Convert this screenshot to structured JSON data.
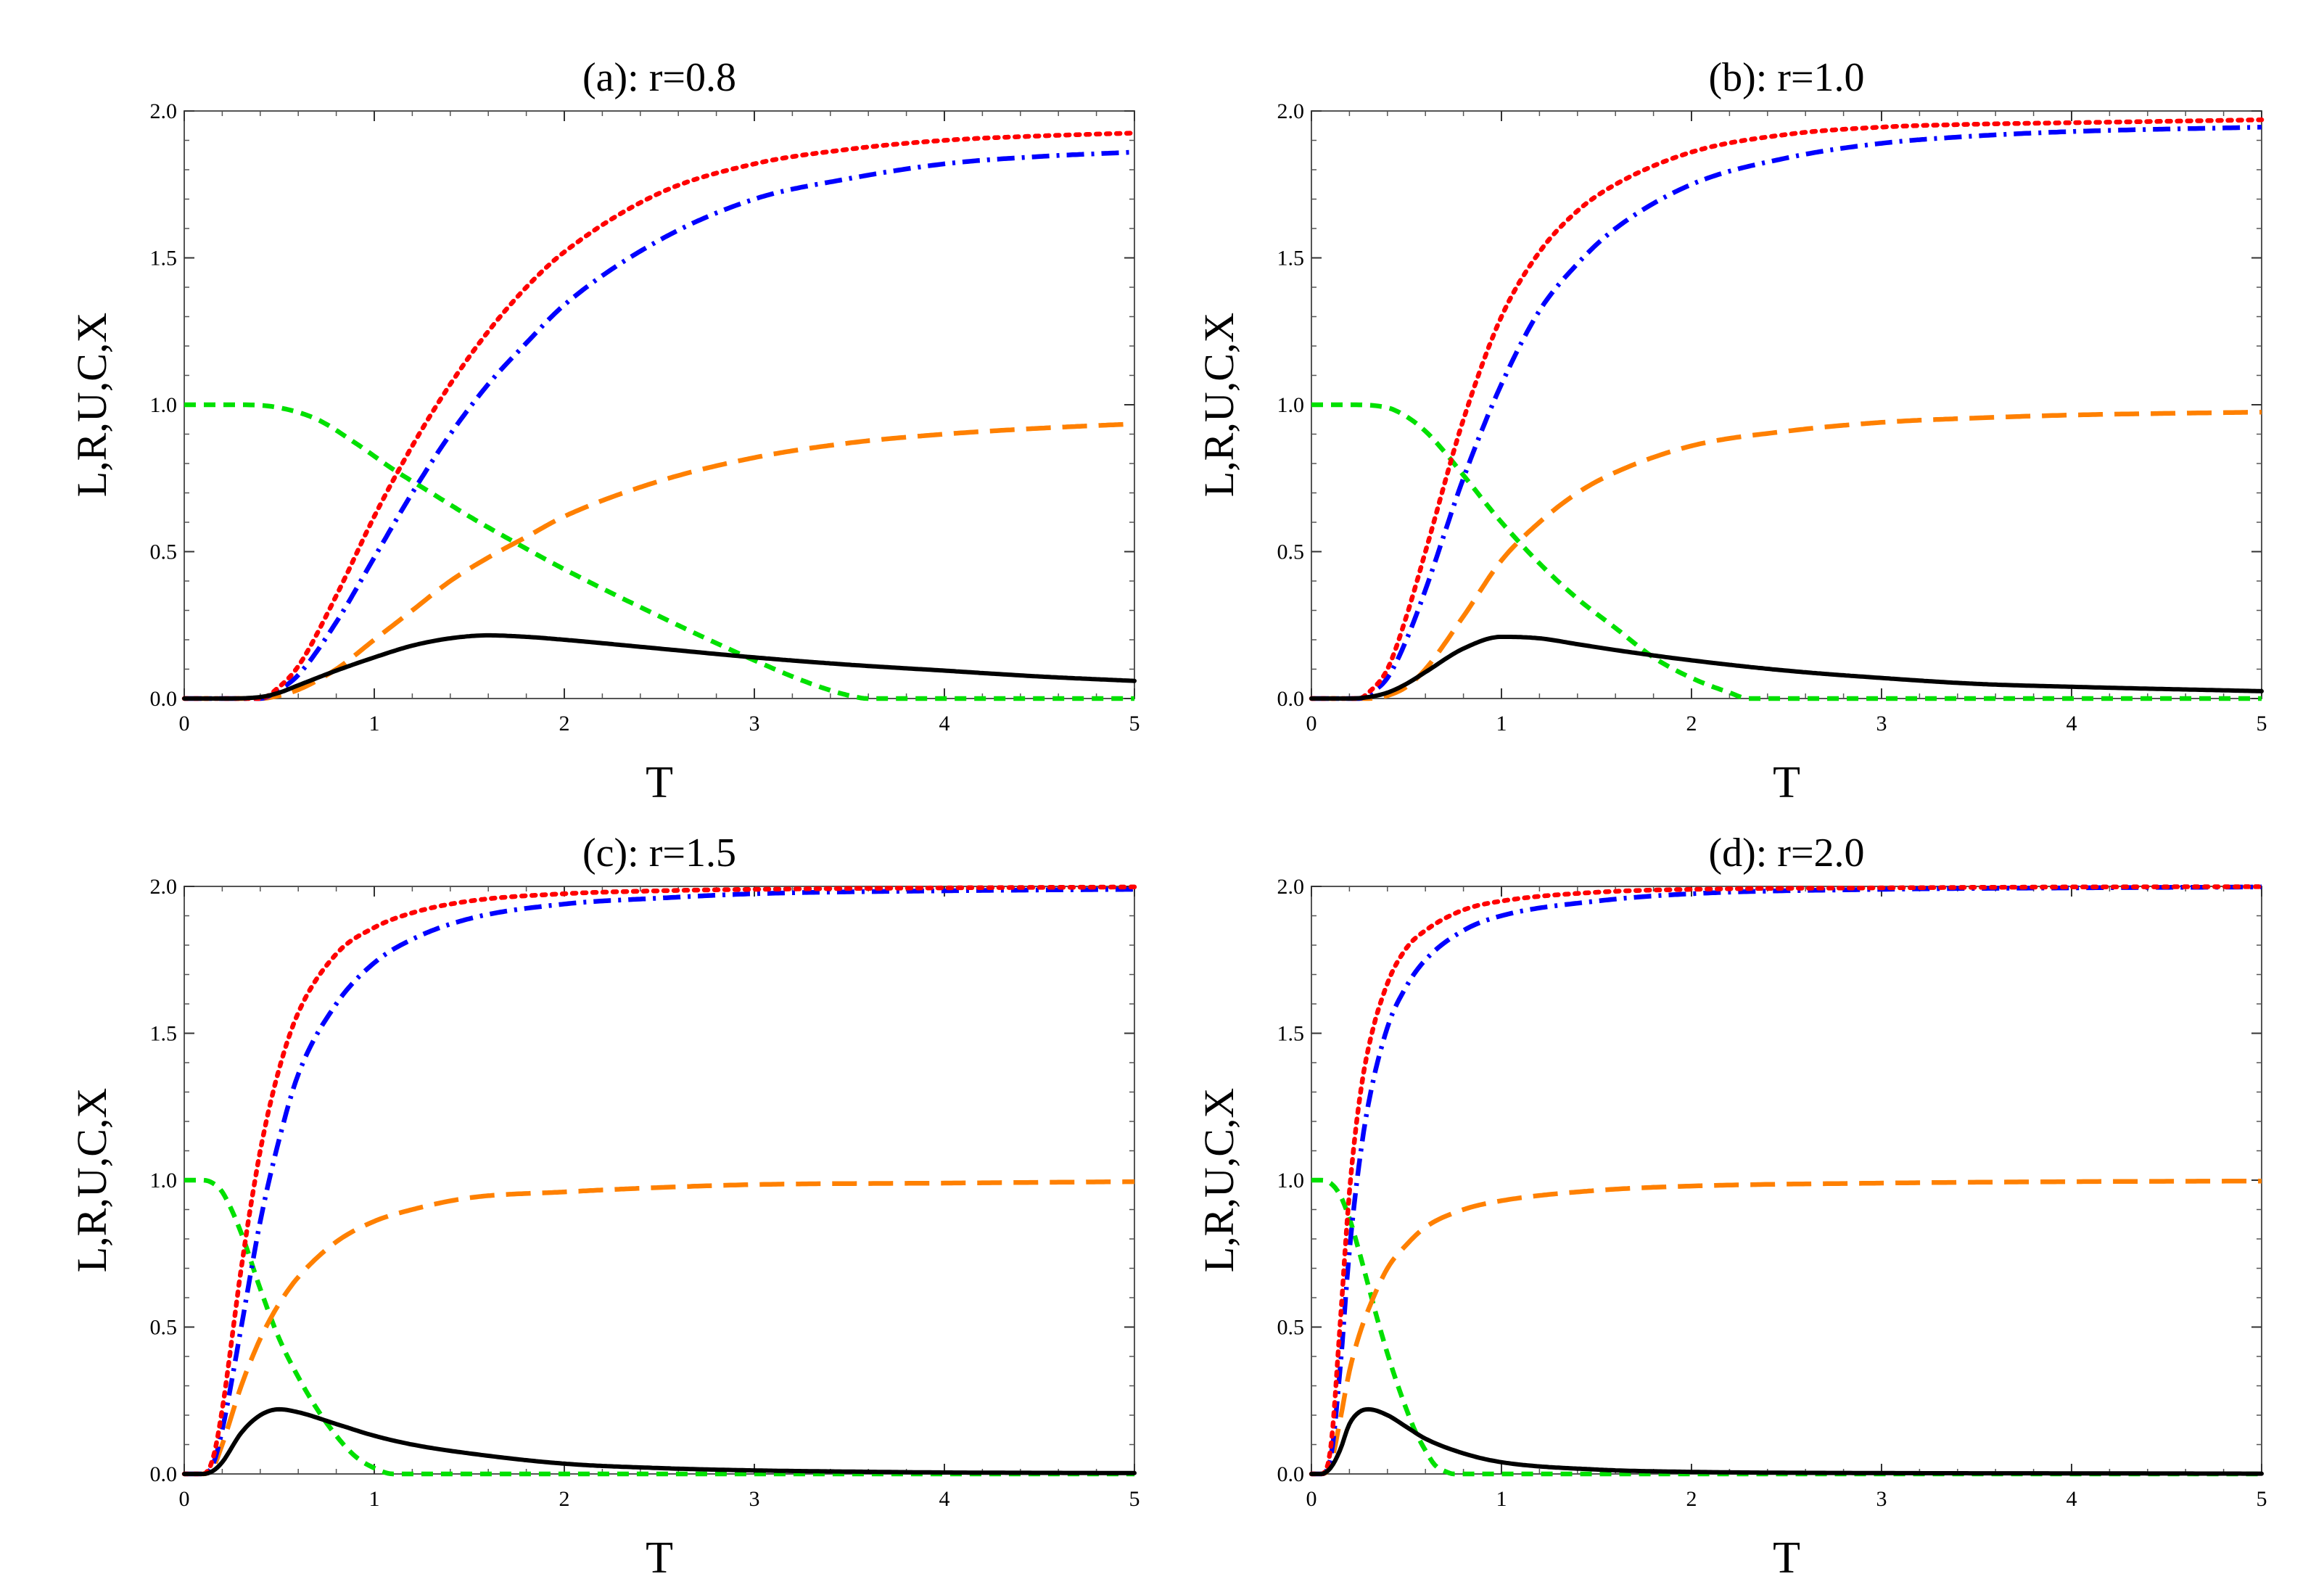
{
  "figure": {
    "colors": {
      "L": "#000000",
      "R": "#ff8000",
      "U": "#ff0000",
      "C": "#0000ff",
      "X": "#00e000"
    },
    "icons": {
      "L": "solid-line",
      "R": "long-dashed-line",
      "U": "dotted-line",
      "C": "dash-dotted-line",
      "X": "short-dashed-line"
    }
  },
  "chart_data": [
    {
      "type": "line",
      "title": "(a): r=0.8",
      "xlabel": "T",
      "ylabel": "L,R,U,C,X",
      "xlim": [
        0,
        5
      ],
      "ylim": [
        0,
        2
      ],
      "x_ticks": [
        "0",
        "1",
        "2",
        "3",
        "4",
        "5"
      ],
      "y_ticks": [
        "0.0",
        "0.5",
        "1.0",
        "1.5",
        "2.0"
      ],
      "series": [
        {
          "name": "L",
          "x": [
            0,
            0.2,
            0.4,
            0.5,
            0.6,
            0.8,
            1.0,
            1.2,
            1.4,
            1.6,
            1.8,
            2.0,
            2.5,
            3.0,
            3.5,
            4.0,
            4.5,
            5.0
          ],
          "values": [
            0,
            0,
            0.005,
            0.02,
            0.045,
            0.095,
            0.14,
            0.18,
            0.205,
            0.215,
            0.21,
            0.2,
            0.17,
            0.14,
            0.115,
            0.095,
            0.075,
            0.06
          ]
        },
        {
          "name": "R",
          "x": [
            0,
            0.4,
            0.5,
            0.6,
            0.8,
            1.0,
            1.2,
            1.4,
            1.6,
            1.8,
            2.0,
            2.5,
            3.0,
            3.5,
            4.0,
            4.5,
            5.0
          ],
          "values": [
            0,
            0,
            0.01,
            0.03,
            0.1,
            0.2,
            0.3,
            0.4,
            0.48,
            0.55,
            0.62,
            0.74,
            0.82,
            0.87,
            0.9,
            0.92,
            0.935
          ]
        },
        {
          "name": "U",
          "x": [
            0,
            0.4,
            0.5,
            0.6,
            0.8,
            1.0,
            1.2,
            1.4,
            1.6,
            1.8,
            2.0,
            2.5,
            3.0,
            3.5,
            4.0,
            4.5,
            5.0
          ],
          "values": [
            0,
            0,
            0.04,
            0.11,
            0.35,
            0.62,
            0.86,
            1.07,
            1.25,
            1.4,
            1.52,
            1.72,
            1.82,
            1.87,
            1.9,
            1.915,
            1.925
          ]
        },
        {
          "name": "C",
          "x": [
            0,
            0.4,
            0.5,
            0.6,
            0.8,
            1.0,
            1.2,
            1.4,
            1.6,
            1.8,
            2.0,
            2.5,
            3.0,
            3.5,
            4.0,
            4.5,
            5.0
          ],
          "values": [
            0,
            0,
            0.03,
            0.08,
            0.26,
            0.48,
            0.7,
            0.9,
            1.07,
            1.21,
            1.34,
            1.56,
            1.7,
            1.77,
            1.82,
            1.845,
            1.86
          ]
        },
        {
          "name": "X",
          "x": [
            0,
            0.3,
            0.5,
            0.7,
            0.9,
            1.1,
            1.3,
            1.5,
            1.8,
            2.0,
            2.5,
            3.0,
            3.3,
            3.5,
            3.6,
            4.0,
            5.0
          ],
          "values": [
            1,
            1,
            0.99,
            0.95,
            0.87,
            0.78,
            0.7,
            0.62,
            0.51,
            0.44,
            0.28,
            0.13,
            0.05,
            0.01,
            0,
            0,
            0
          ]
        }
      ]
    },
    {
      "type": "line",
      "title": "(b): r=1.0",
      "xlabel": "T",
      "ylabel": "L,R,U,C,X",
      "xlim": [
        0,
        5
      ],
      "ylim": [
        0,
        2
      ],
      "x_ticks": [
        "0",
        "1",
        "2",
        "3",
        "4",
        "5"
      ],
      "y_ticks": [
        "0.0",
        "0.5",
        "1.0",
        "1.5",
        "2.0"
      ],
      "series": [
        {
          "name": "L",
          "x": [
            0,
            0.2,
            0.3,
            0.4,
            0.5,
            0.6,
            0.8,
            1.0,
            1.2,
            1.4,
            1.6,
            2.0,
            2.5,
            3.0,
            3.5,
            4.0,
            5.0
          ],
          "values": [
            0,
            0,
            0.005,
            0.02,
            0.05,
            0.09,
            0.17,
            0.21,
            0.205,
            0.185,
            0.165,
            0.13,
            0.095,
            0.07,
            0.05,
            0.04,
            0.025
          ]
        },
        {
          "name": "R",
          "x": [
            0,
            0.3,
            0.4,
            0.5,
            0.6,
            0.8,
            1.0,
            1.2,
            1.4,
            1.6,
            2.0,
            2.5,
            3.0,
            3.5,
            4.0,
            5.0
          ],
          "values": [
            0,
            0,
            0.01,
            0.04,
            0.1,
            0.28,
            0.47,
            0.6,
            0.7,
            0.77,
            0.86,
            0.91,
            0.94,
            0.955,
            0.965,
            0.975
          ]
        },
        {
          "name": "U",
          "x": [
            0,
            0.25,
            0.3,
            0.4,
            0.5,
            0.6,
            0.8,
            1.0,
            1.2,
            1.4,
            1.6,
            2.0,
            2.5,
            3.0,
            3.5,
            4.0,
            5.0
          ],
          "values": [
            0,
            0,
            0.02,
            0.1,
            0.28,
            0.5,
            0.95,
            1.3,
            1.52,
            1.66,
            1.75,
            1.86,
            1.92,
            1.945,
            1.955,
            1.96,
            1.97
          ]
        },
        {
          "name": "C",
          "x": [
            0,
            0.25,
            0.3,
            0.4,
            0.5,
            0.6,
            0.8,
            1.0,
            1.2,
            1.4,
            1.6,
            2.0,
            2.5,
            3.0,
            3.5,
            4.0,
            5.0
          ],
          "values": [
            0,
            0,
            0.015,
            0.07,
            0.2,
            0.37,
            0.75,
            1.07,
            1.32,
            1.48,
            1.6,
            1.75,
            1.84,
            1.89,
            1.915,
            1.93,
            1.945
          ]
        },
        {
          "name": "X",
          "x": [
            0,
            0.2,
            0.4,
            0.5,
            0.6,
            0.7,
            0.8,
            1.0,
            1.2,
            1.4,
            1.6,
            1.8,
            2.0,
            2.2,
            2.3,
            2.5,
            5.0
          ],
          "values": [
            1,
            1,
            0.99,
            0.96,
            0.91,
            0.84,
            0.76,
            0.6,
            0.46,
            0.34,
            0.24,
            0.14,
            0.07,
            0.02,
            0,
            0,
            0
          ]
        }
      ]
    },
    {
      "type": "line",
      "title": "(c): r=1.5",
      "xlabel": "T",
      "ylabel": "L,R,U,C,X",
      "xlim": [
        0,
        5
      ],
      "ylim": [
        0,
        2
      ],
      "x_ticks": [
        "0",
        "1",
        "2",
        "3",
        "4",
        "5"
      ],
      "y_ticks": [
        "0.0",
        "0.5",
        "1.0",
        "1.5",
        "2.0"
      ],
      "series": [
        {
          "name": "L",
          "x": [
            0,
            0.1,
            0.15,
            0.2,
            0.3,
            0.4,
            0.5,
            0.6,
            0.8,
            1.0,
            1.2,
            1.5,
            2.0,
            2.5,
            3.0,
            3.5,
            4.0,
            5.0
          ],
          "values": [
            0,
            0,
            0.01,
            0.04,
            0.14,
            0.2,
            0.22,
            0.21,
            0.17,
            0.13,
            0.1,
            0.07,
            0.035,
            0.02,
            0.012,
            0.008,
            0.005,
            0.003
          ]
        },
        {
          "name": "R",
          "x": [
            0,
            0.1,
            0.15,
            0.2,
            0.3,
            0.4,
            0.5,
            0.6,
            0.8,
            1.0,
            1.2,
            1.5,
            2.0,
            2.5,
            3.0,
            4.0,
            5.0
          ],
          "values": [
            0,
            0,
            0.02,
            0.1,
            0.3,
            0.46,
            0.58,
            0.67,
            0.79,
            0.86,
            0.9,
            0.94,
            0.96,
            0.975,
            0.985,
            0.99,
            0.995
          ]
        },
        {
          "name": "U",
          "x": [
            0,
            0.1,
            0.15,
            0.2,
            0.3,
            0.4,
            0.5,
            0.6,
            0.8,
            1.0,
            1.2,
            1.5,
            2.0,
            2.5,
            3.0,
            4.0,
            5.0
          ],
          "values": [
            0,
            0,
            0.05,
            0.22,
            0.7,
            1.1,
            1.38,
            1.57,
            1.77,
            1.86,
            1.91,
            1.95,
            1.975,
            1.985,
            1.99,
            1.995,
            1.998
          ]
        },
        {
          "name": "C",
          "x": [
            0,
            0.1,
            0.15,
            0.2,
            0.3,
            0.4,
            0.5,
            0.6,
            0.8,
            1.0,
            1.2,
            1.5,
            2.0,
            2.5,
            3.0,
            4.0,
            5.0
          ],
          "values": [
            0,
            0,
            0.03,
            0.15,
            0.5,
            0.86,
            1.14,
            1.36,
            1.6,
            1.74,
            1.82,
            1.89,
            1.94,
            1.96,
            1.975,
            1.985,
            1.99
          ]
        },
        {
          "name": "X",
          "x": [
            0,
            0.1,
            0.15,
            0.2,
            0.3,
            0.4,
            0.5,
            0.6,
            0.7,
            0.8,
            0.9,
            1.0,
            1.1,
            1.2,
            5.0
          ],
          "values": [
            1,
            1,
            0.99,
            0.96,
            0.82,
            0.63,
            0.46,
            0.33,
            0.22,
            0.13,
            0.06,
            0.02,
            0,
            0,
            0
          ]
        }
      ]
    },
    {
      "type": "line",
      "title": "(d): r=2.0",
      "xlabel": "T",
      "ylabel": "L,R,U,C,X",
      "xlim": [
        0,
        5
      ],
      "ylim": [
        0,
        2
      ],
      "x_ticks": [
        "0",
        "1",
        "2",
        "3",
        "4",
        "5"
      ],
      "y_ticks": [
        "0.0",
        "0.5",
        "1.0",
        "1.5",
        "2.0"
      ],
      "series": [
        {
          "name": "L",
          "x": [
            0,
            0.05,
            0.1,
            0.15,
            0.2,
            0.25,
            0.3,
            0.4,
            0.5,
            0.6,
            0.8,
            1.0,
            1.5,
            2.0,
            3.0,
            4.0,
            5.0
          ],
          "values": [
            0,
            0,
            0.02,
            0.08,
            0.17,
            0.21,
            0.22,
            0.2,
            0.16,
            0.12,
            0.07,
            0.04,
            0.015,
            0.007,
            0.003,
            0.002,
            0.001
          ]
        },
        {
          "name": "R",
          "x": [
            0,
            0.05,
            0.1,
            0.15,
            0.2,
            0.25,
            0.3,
            0.4,
            0.5,
            0.6,
            0.8,
            1.0,
            1.5,
            2.0,
            3.0,
            4.0,
            5.0
          ],
          "values": [
            0,
            0,
            0.03,
            0.18,
            0.35,
            0.47,
            0.56,
            0.7,
            0.78,
            0.84,
            0.9,
            0.93,
            0.965,
            0.98,
            0.99,
            0.995,
            0.997
          ]
        },
        {
          "name": "U",
          "x": [
            0,
            0.05,
            0.1,
            0.15,
            0.2,
            0.25,
            0.3,
            0.4,
            0.5,
            0.6,
            0.8,
            1.0,
            1.5,
            2.0,
            3.0,
            4.0,
            5.0
          ],
          "values": [
            0,
            0,
            0.08,
            0.5,
            0.96,
            1.26,
            1.45,
            1.67,
            1.79,
            1.85,
            1.92,
            1.95,
            1.98,
            1.99,
            1.995,
            1.998,
            1.999
          ]
        },
        {
          "name": "C",
          "x": [
            0,
            0.05,
            0.1,
            0.15,
            0.2,
            0.25,
            0.3,
            0.4,
            0.5,
            0.6,
            0.8,
            1.0,
            1.5,
            2.0,
            3.0,
            4.0,
            5.0
          ],
          "values": [
            0,
            0,
            0.05,
            0.35,
            0.76,
            1.05,
            1.26,
            1.52,
            1.66,
            1.75,
            1.85,
            1.9,
            1.95,
            1.975,
            1.99,
            1.995,
            1.998
          ]
        },
        {
          "name": "X",
          "x": [
            0,
            0.05,
            0.1,
            0.15,
            0.2,
            0.25,
            0.3,
            0.35,
            0.4,
            0.45,
            0.5,
            0.55,
            0.6,
            0.65,
            0.7,
            0.75,
            5.0
          ],
          "values": [
            1,
            1,
            0.99,
            0.95,
            0.87,
            0.76,
            0.64,
            0.52,
            0.41,
            0.31,
            0.22,
            0.14,
            0.08,
            0.03,
            0.01,
            0,
            0
          ]
        }
      ]
    }
  ]
}
